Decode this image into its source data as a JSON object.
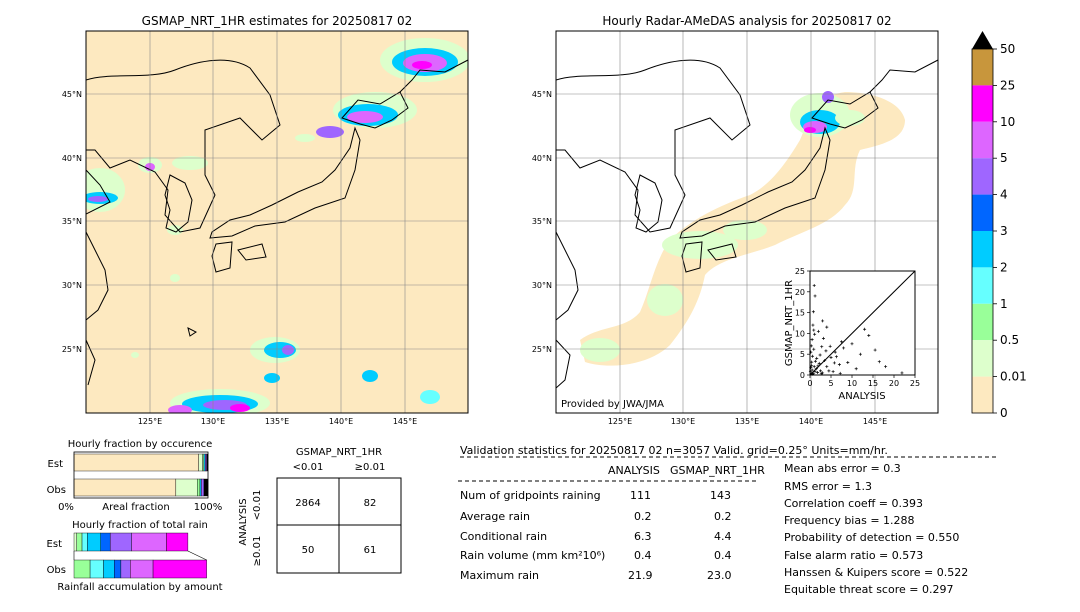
{
  "left_map": {
    "title": "GSMAP_NRT_1HR estimates for 20250817 02",
    "lat_labels": [
      "45°N",
      "40°N",
      "35°N",
      "30°N",
      "25°N"
    ],
    "lon_labels": [
      "125°E",
      "130°E",
      "135°E",
      "140°E",
      "145°E"
    ]
  },
  "right_map": {
    "title": "Hourly Radar-AMeDAS analysis for 20250817 02",
    "lat_labels": [
      "45°N",
      "40°N",
      "35°N",
      "30°N",
      "25°N"
    ],
    "lon_labels": [
      "125°E",
      "130°E",
      "135°E",
      "140°E",
      "145°E"
    ],
    "credit": "Provided by JWA/JMA"
  },
  "colorbar": {
    "labels": [
      "50",
      "25",
      "10",
      "5",
      "4",
      "3",
      "2",
      "1",
      "0.5",
      "0.01",
      "0"
    ],
    "colors": [
      "#c8963c",
      "#ff00ff",
      "#dd66ff",
      "#9f66ff",
      "#0066ff",
      "#00ccff",
      "#66ffff",
      "#99ff99",
      "#ddffcc",
      "#fde9c0"
    ],
    "over_color": "#000000"
  },
  "chart_data": [
    {
      "type": "scatter",
      "xlabel": "ANALYSIS",
      "ylabel": "GSMAP_NRT_1HR",
      "xlim": [
        0,
        25
      ],
      "ylim": [
        0,
        25
      ],
      "x_ticks": [
        "0",
        "5",
        "10",
        "15",
        "20",
        "25"
      ],
      "y_ticks": [
        "0",
        "5",
        "10",
        "15",
        "20",
        "25"
      ],
      "points": [
        [
          0.3,
          0.4
        ],
        [
          0.5,
          1.2
        ],
        [
          0.8,
          0.3
        ],
        [
          1.0,
          2.0
        ],
        [
          1.2,
          0.8
        ],
        [
          0.4,
          3.1
        ],
        [
          0.6,
          4.5
        ],
        [
          0.2,
          5.5
        ],
        [
          1.5,
          1.5
        ],
        [
          0.9,
          6.2
        ],
        [
          0.3,
          7.0
        ],
        [
          1.8,
          0.6
        ],
        [
          2.2,
          2.8
        ],
        [
          2.5,
          1.0
        ],
        [
          3.0,
          0.5
        ],
        [
          0.5,
          8.5
        ],
        [
          1.1,
          9.8
        ],
        [
          0.7,
          12.0
        ],
        [
          1.0,
          21.5
        ],
        [
          1.2,
          19.0
        ],
        [
          3.5,
          3.5
        ],
        [
          4.0,
          2.0
        ],
        [
          4.5,
          1.0
        ],
        [
          5.0,
          4.2
        ],
        [
          5.5,
          0.8
        ],
        [
          6.0,
          5.5
        ],
        [
          6.3,
          4.4
        ],
        [
          7.0,
          2.5
        ],
        [
          7.5,
          8.0
        ],
        [
          8.0,
          6.5
        ],
        [
          9.0,
          3.0
        ],
        [
          10.0,
          7.5
        ],
        [
          12.0,
          5.0
        ],
        [
          13.0,
          11.0
        ],
        [
          14.0,
          9.5
        ],
        [
          15.5,
          6.0
        ],
        [
          18.0,
          2.0
        ],
        [
          21.9,
          0.5
        ],
        [
          2.0,
          10.5
        ],
        [
          3.0,
          13.0
        ],
        [
          0.8,
          15.2
        ],
        [
          2.8,
          6.8
        ],
        [
          4.0,
          11.5
        ],
        [
          1.6,
          4.0
        ],
        [
          0.4,
          2.3
        ],
        [
          0.1,
          0.9
        ],
        [
          0.2,
          1.8
        ],
        [
          2.4,
          4.8
        ],
        [
          3.2,
          8.8
        ],
        [
          5.8,
          2.9
        ],
        [
          1.3,
          3.3
        ],
        [
          0.6,
          0.2
        ],
        [
          1.9,
          2.2
        ],
        [
          3.8,
          5.8
        ],
        [
          7.2,
          0.4
        ],
        [
          11.0,
          1.5
        ],
        [
          16.5,
          3.2
        ],
        [
          0.9,
          10.8
        ],
        [
          2.7,
          0.3
        ],
        [
          4.8,
          6.9
        ]
      ]
    },
    {
      "type": "bar",
      "title": "Hourly fraction by occurence",
      "categories": [
        "Est",
        "Obs"
      ],
      "xlabel": "Areal fraction",
      "x_tick_labels": [
        "0%",
        "100%"
      ],
      "series": [
        {
          "values": [
            0.93,
            0.76
          ],
          "color": "#fde9c0"
        },
        {
          "values": [
            0.03,
            0.16
          ],
          "color": "#ddffcc"
        },
        {
          "values": [
            0.01,
            0.02
          ],
          "color": "#99ff99"
        },
        {
          "values": [
            0.01,
            0.01
          ],
          "color": "#00ccff"
        },
        {
          "values": [
            0.01,
            0.02
          ],
          "color": "#9f66ff"
        },
        {
          "values": [
            0.01,
            0.03
          ],
          "color": "#000000"
        }
      ]
    },
    {
      "type": "bar",
      "title": "Hourly fraction of total rain",
      "categories": [
        "Est",
        "Obs"
      ],
      "xlabel": "Rainfall accumulation by amount",
      "series": [
        {
          "values": [
            0.02,
            0.0
          ],
          "color": "#ddffcc"
        },
        {
          "values": [
            0.04,
            0.12
          ],
          "color": "#99ff99"
        },
        {
          "values": [
            0.04,
            0.1
          ],
          "color": "#66ffff"
        },
        {
          "values": [
            0.1,
            0.08
          ],
          "color": "#00ccff"
        },
        {
          "values": [
            0.07,
            0.05
          ],
          "color": "#0066ff"
        },
        {
          "values": [
            0.16,
            0.07
          ],
          "color": "#9f66ff"
        },
        {
          "values": [
            0.26,
            0.17
          ],
          "color": "#dd66ff"
        },
        {
          "values": [
            0.16,
            0.4
          ],
          "color": "#ff00ff"
        }
      ]
    }
  ],
  "contingency": {
    "title": "GSMAP_NRT_1HR",
    "col_labels": [
      "<0.01",
      "≥0.01"
    ],
    "row_axis_label": "ANALYSIS",
    "row_labels": [
      "<0.01",
      "≥0.01"
    ],
    "cells": [
      [
        "2864",
        "82"
      ],
      [
        "50",
        "61"
      ]
    ]
  },
  "stats": {
    "header": "Validation statistics for 20250817 02  n=3057 Valid. grid=0.25°  Units=mm/hr.",
    "col_analysis": "ANALYSIS",
    "col_gsmap": "GSMAP_NRT_1HR",
    "rows": [
      {
        "label": "Num of gridpoints raining",
        "analysis": "111",
        "gsmap": "143"
      },
      {
        "label": "Average rain",
        "analysis": "0.2",
        "gsmap": "0.2"
      },
      {
        "label": "Conditional rain",
        "analysis": "6.3",
        "gsmap": "4.4"
      },
      {
        "label": "Rain volume (mm km²10⁶)",
        "analysis": "0.4",
        "gsmap": "0.4"
      },
      {
        "label": "Maximum rain",
        "analysis": "21.9",
        "gsmap": "23.0"
      }
    ],
    "scores": [
      "Mean abs error =    0.3",
      "RMS error =    1.3",
      "Correlation coeff =  0.393",
      "Frequency bias =  1.288",
      "Probability of detection =  0.550",
      "False alarm ratio =  0.573",
      "Hanssen & Kuipers score =  0.522",
      "Equitable threat score =  0.297"
    ]
  }
}
